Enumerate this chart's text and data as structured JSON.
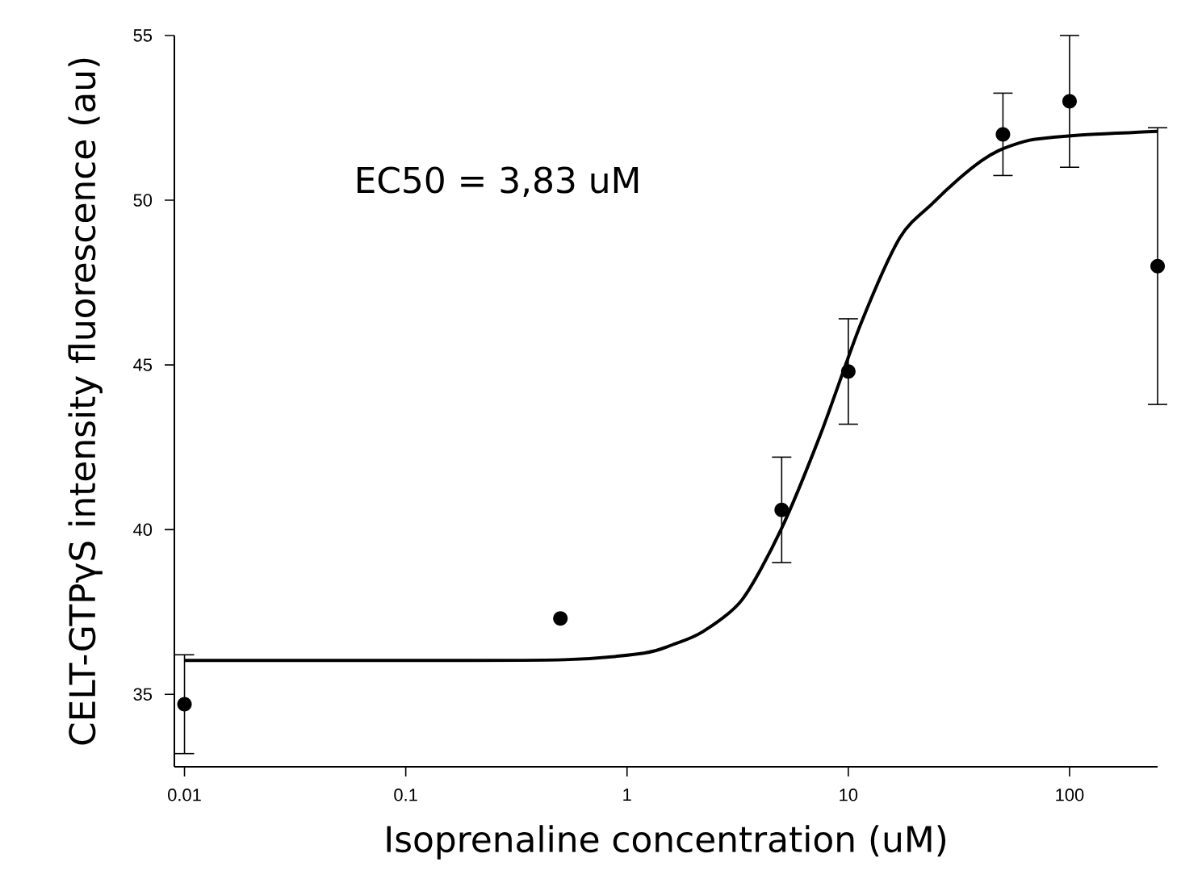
{
  "chart_data": {
    "type": "scatter",
    "xlabel": "Isoprenaline concentration (uM)",
    "ylabel": "CELT-GTPγS intensity fluorescence (au)",
    "annotations": [
      "EC50 = 3,83 uM"
    ],
    "log": "x",
    "grid": false,
    "marker": "circle",
    "xlim": [
      0.009,
      250
    ],
    "ylim": [
      32.8,
      55
    ],
    "xticks": [
      0.01,
      0.1,
      1,
      10,
      100
    ],
    "yticks": [
      35,
      40,
      45,
      50,
      55
    ],
    "series": [
      {
        "color": "#000000",
        "x": [
          0.01,
          0.5,
          5,
          10,
          50,
          100,
          250
        ],
        "values": [
          34.7,
          37.3,
          40.6,
          44.8,
          52.0,
          53.0,
          48.0
        ],
        "errors": [
          1.5,
          null,
          1.6,
          1.6,
          1.25,
          2.0,
          4.2
        ]
      },
      {
        "type": "line",
        "marker": "none",
        "color": "#000000",
        "line_style": "solid",
        "x": [
          0.01,
          0.1,
          0.52,
          1.19,
          1.6,
          2.2,
          3.31,
          4.98,
          7.5,
          11.4,
          17.1,
          24,
          31.6,
          40,
          47.6,
          60,
          70,
          107,
          250
        ],
        "values": [
          36.03,
          36.03,
          36.05,
          36.25,
          36.5,
          36.9,
          37.87,
          40.02,
          42.9,
          46.25,
          48.86,
          49.9,
          50.65,
          51.2,
          51.5,
          51.75,
          51.85,
          51.97,
          52.09
        ]
      }
    ]
  }
}
